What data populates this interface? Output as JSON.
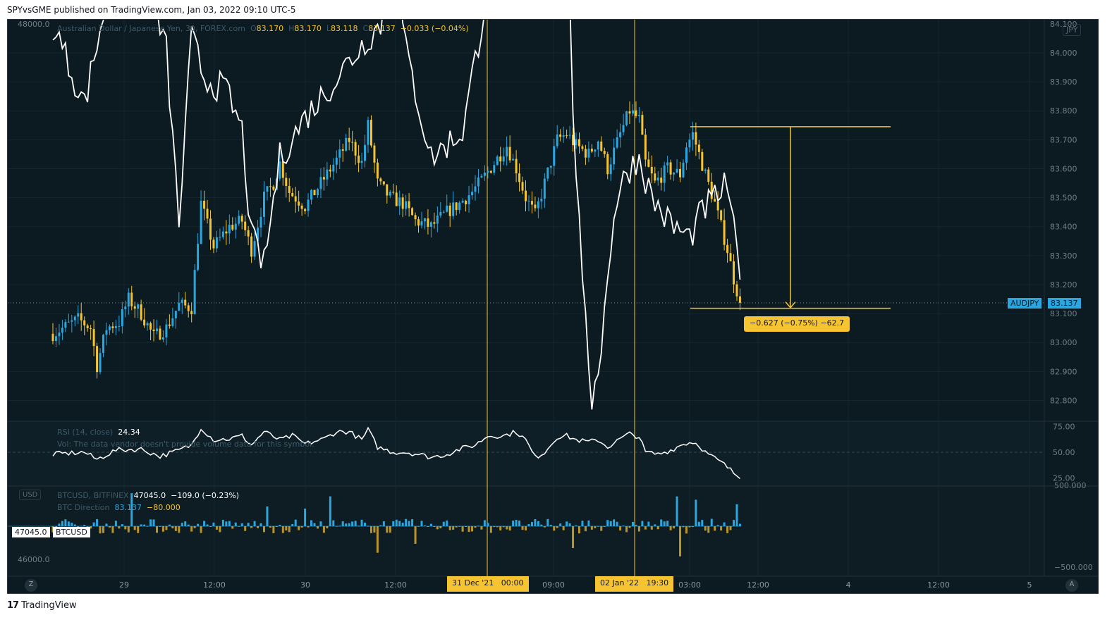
{
  "header": {
    "publish_line": "SPYvsGME published on TradingView.com, Jan 03, 2022 09:10 UTC-5"
  },
  "footer": {
    "brand": "TradingView",
    "logo_glyph": "17"
  },
  "legend_main": {
    "title": "Australian Dollar / Japanese Yen, 30, FOREX.com",
    "o_label": "O",
    "o": "83.170",
    "h_label": "H",
    "h": "83.170",
    "l_label": "L",
    "l": "83.118",
    "c_label": "C",
    "c": "83.137",
    "change": "−0.033 (−0.04%)"
  },
  "currency_main": "JPY",
  "price_axis_labels": [
    "84.100",
    "84.000",
    "83.900",
    "83.800",
    "83.700",
    "83.600",
    "83.500",
    "83.400",
    "83.300",
    "83.200",
    "83.100",
    "83.000",
    "82.900",
    "82.800"
  ],
  "last_price_tag": {
    "symbol": "AUDJPY",
    "price": "83.137"
  },
  "measure_label": "−0.627 (−0.75%) −62.7",
  "rsi": {
    "label": "RSI (14, close)",
    "value": "24.34",
    "axis_labels": [
      "75.00",
      "50.00",
      "25.00"
    ]
  },
  "vol_note": "Vol: The data vendor doesn't provide volume data for this symbol.",
  "btc_pane": {
    "currency": "USD",
    "legend_symbol": "BTCUSD, BITFINEX",
    "legend_price": "47045.0",
    "legend_change": "−109.0 (−0.23%)",
    "direction_label": "BTC Direction",
    "direction_value_1": "83.137",
    "direction_value_2": "−80.000",
    "left_axis_labels": [
      "48000.0",
      "46000.0"
    ],
    "right_axis_labels": [
      "500.000",
      "−500.000"
    ],
    "price_tag": "47045.0",
    "symbol_tag": "BTCUSD"
  },
  "time_axis": {
    "labels": [
      "29",
      "12:00",
      "30",
      "12:00",
      "09:00",
      "03:00",
      "12:00",
      "4",
      "12:00",
      "5"
    ],
    "highlight_1": "31 Dec '21   00:00",
    "highlight_2": "02 Jan '22   19:30",
    "left_button": "Z",
    "right_button": "A"
  },
  "colors": {
    "background": "#0c1a21",
    "up_candle": "#2aa6e0",
    "down_candle": "#f5c430",
    "line_white": "#ffffff",
    "highlight": "#f5c430",
    "price_tag_bg": "#2aa6e0"
  },
  "chart_data": [
    {
      "type": "candlestick",
      "title": "Australian Dollar / Japanese Yen, 30, FOREX.com",
      "ylim": [
        82.75,
        84.12
      ],
      "x_tick_labels": [
        "29",
        "12:00",
        "30",
        "12:00",
        "09:00",
        "03:00",
        "12:00",
        "4",
        "12:00",
        "5"
      ],
      "y_tick_labels": [
        "84.100",
        "84.000",
        "83.900",
        "83.800",
        "83.700",
        "83.600",
        "83.500",
        "83.400",
        "83.300",
        "83.200",
        "83.100",
        "83.000",
        "82.900",
        "82.800"
      ],
      "close_waypoints": [
        [
          0,
          83.03
        ],
        [
          8,
          83.08
        ],
        [
          12,
          83.05
        ],
        [
          14,
          82.92
        ],
        [
          17,
          83.05
        ],
        [
          21,
          83.07
        ],
        [
          24,
          83.15
        ],
        [
          28,
          83.1
        ],
        [
          32,
          83.02
        ],
        [
          36,
          83.05
        ],
        [
          40,
          83.13
        ],
        [
          44,
          83.12
        ],
        [
          47,
          83.48
        ],
        [
          51,
          83.33
        ],
        [
          56,
          83.4
        ],
        [
          60,
          83.42
        ],
        [
          63,
          83.32
        ],
        [
          67,
          83.5
        ],
        [
          70,
          83.55
        ],
        [
          72,
          83.62
        ],
        [
          75,
          83.52
        ],
        [
          80,
          83.47
        ],
        [
          85,
          83.55
        ],
        [
          90,
          83.63
        ],
        [
          94,
          83.7
        ],
        [
          98,
          83.62
        ],
        [
          100,
          83.75
        ],
        [
          103,
          83.55
        ],
        [
          107,
          83.5
        ],
        [
          111,
          83.48
        ],
        [
          115,
          83.42
        ],
        [
          120,
          83.4
        ],
        [
          125,
          83.45
        ],
        [
          129,
          83.48
        ],
        [
          133,
          83.52
        ],
        [
          136,
          83.56
        ],
        [
          140,
          83.62
        ],
        [
          144,
          83.68
        ],
        [
          147,
          83.6
        ],
        [
          150,
          83.5
        ],
        [
          153,
          83.44
        ],
        [
          156,
          83.55
        ],
        [
          160,
          83.7
        ],
        [
          163,
          83.72
        ],
        [
          166,
          83.68
        ],
        [
          170,
          83.65
        ],
        [
          173,
          83.7
        ],
        [
          176,
          83.6
        ],
        [
          180,
          83.72
        ],
        [
          183,
          83.8
        ],
        [
          186,
          83.77
        ],
        [
          188,
          83.62
        ],
        [
          191,
          83.55
        ],
        [
          195,
          83.6
        ],
        [
          199,
          83.58
        ],
        [
          201,
          83.68
        ],
        [
          203,
          83.72
        ],
        [
          205,
          83.65
        ],
        [
          207,
          83.58
        ],
        [
          210,
          83.48
        ],
        [
          212,
          83.4
        ],
        [
          214,
          83.32
        ],
        [
          216,
          83.22
        ],
        [
          218,
          83.14
        ]
      ],
      "last_close": 83.137,
      "measure": {
        "from": 83.745,
        "to": 83.118,
        "label": "−0.627 (−0.75%) −62.7"
      }
    },
    {
      "type": "line",
      "title": "RSI (14, close)",
      "ylim": [
        20,
        80
      ],
      "y_tick_labels": [
        "75.00",
        "50.00",
        "25.00"
      ],
      "last_value": 24.34,
      "waypoints": [
        [
          0,
          48
        ],
        [
          10,
          50
        ],
        [
          14,
          43
        ],
        [
          20,
          52
        ],
        [
          28,
          53
        ],
        [
          34,
          46
        ],
        [
          40,
          52
        ],
        [
          44,
          57
        ],
        [
          47,
          74
        ],
        [
          51,
          62
        ],
        [
          56,
          63
        ],
        [
          60,
          66
        ],
        [
          63,
          57
        ],
        [
          67,
          70
        ],
        [
          72,
          62
        ],
        [
          76,
          66
        ],
        [
          80,
          58
        ],
        [
          86,
          63
        ],
        [
          90,
          70
        ],
        [
          94,
          70
        ],
        [
          98,
          62
        ],
        [
          100,
          72
        ],
        [
          103,
          55
        ],
        [
          108,
          50
        ],
        [
          112,
          50
        ],
        [
          116,
          48
        ],
        [
          120,
          45
        ],
        [
          125,
          48
        ],
        [
          129,
          53
        ],
        [
          134,
          57
        ],
        [
          138,
          66
        ],
        [
          143,
          66
        ],
        [
          147,
          70
        ],
        [
          150,
          62
        ],
        [
          153,
          45
        ],
        [
          156,
          50
        ],
        [
          160,
          65
        ],
        [
          163,
          66
        ],
        [
          166,
          62
        ],
        [
          170,
          60
        ],
        [
          173,
          62
        ],
        [
          176,
          55
        ],
        [
          180,
          63
        ],
        [
          183,
          68
        ],
        [
          186,
          65
        ],
        [
          188,
          50
        ],
        [
          192,
          48
        ],
        [
          196,
          52
        ],
        [
          200,
          58
        ],
        [
          203,
          60
        ],
        [
          205,
          57
        ],
        [
          207,
          50
        ],
        [
          210,
          44
        ],
        [
          213,
          38
        ],
        [
          216,
          30
        ],
        [
          218,
          25
        ]
      ]
    },
    {
      "type": "line",
      "title": "BTCUSD, BITFINEX",
      "y_tick_labels": [
        "48000.0",
        "46000.0"
      ],
      "last_value": 47045.0,
      "waypoints": [
        [
          0,
          48000
        ],
        [
          10,
          47700
        ],
        [
          18,
          48150
        ],
        [
          28,
          48250
        ],
        [
          36,
          47900
        ],
        [
          40,
          47250
        ],
        [
          44,
          47950
        ],
        [
          48,
          47800
        ],
        [
          55,
          47750
        ],
        [
          60,
          47600
        ],
        [
          63,
          47200
        ],
        [
          67,
          47100
        ],
        [
          72,
          47500
        ],
        [
          80,
          47650
        ],
        [
          90,
          47800
        ],
        [
          100,
          47950
        ],
        [
          104,
          48000
        ],
        [
          108,
          48300
        ],
        [
          112,
          47900
        ],
        [
          120,
          47500
        ],
        [
          125,
          47550
        ],
        [
          130,
          47600
        ],
        [
          136,
          48000
        ],
        [
          140,
          48350
        ],
        [
          143,
          48850
        ],
        [
          147,
          48650
        ],
        [
          152,
          48500
        ],
        [
          160,
          48500
        ],
        [
          163,
          48400
        ],
        [
          165,
          47700
        ],
        [
          168,
          47000
        ],
        [
          171,
          46600
        ],
        [
          174,
          46800
        ],
        [
          178,
          47300
        ],
        [
          182,
          47450
        ],
        [
          186,
          47500
        ],
        [
          190,
          47350
        ],
        [
          196,
          47250
        ],
        [
          202,
          47200
        ],
        [
          206,
          47300
        ],
        [
          210,
          47350
        ],
        [
          214,
          47400
        ],
        [
          218,
          47045
        ]
      ]
    },
    {
      "type": "bar",
      "title": "BTC Direction",
      "y_tick_labels": [
        "500.000",
        "−500.000"
      ],
      "ylim": [
        -700,
        700
      ]
    }
  ]
}
